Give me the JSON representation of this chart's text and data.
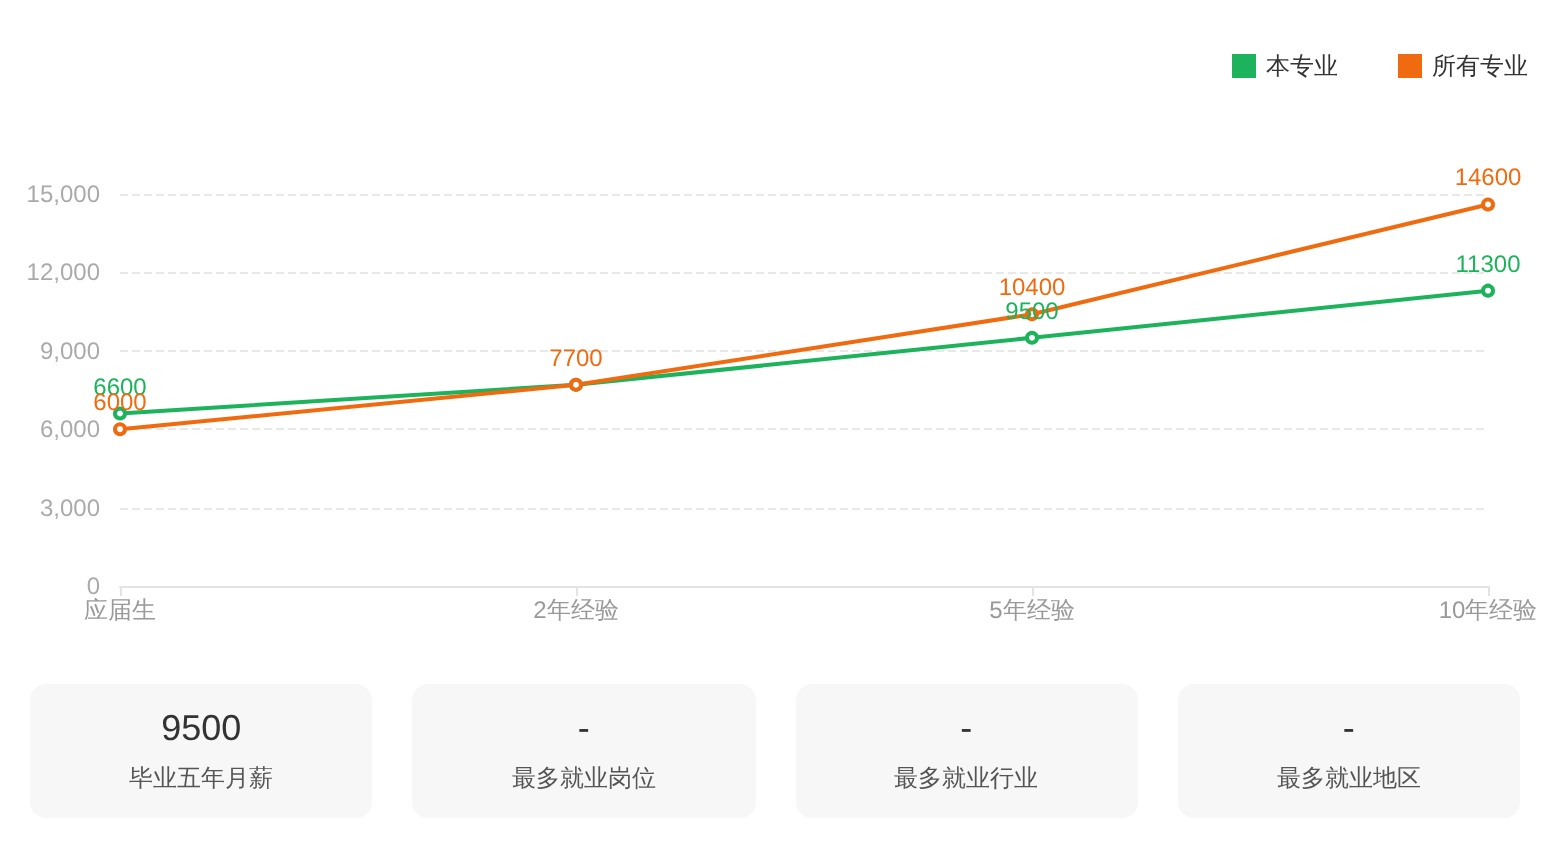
{
  "chart_data": [
    {
      "type": "line",
      "categories": [
        "应届生",
        "2年经验",
        "5年经验",
        "10年经验"
      ],
      "series": [
        {
          "name": "本专业",
          "color": "#1db35c",
          "values": [
            6600,
            7700,
            9500,
            11300
          ],
          "value_labels": [
            "6600",
            null,
            "9500",
            "11300"
          ]
        },
        {
          "name": "所有专业",
          "color": "#f06b0f",
          "values": [
            6000,
            7700,
            10400,
            14600
          ],
          "value_labels": [
            "6000",
            "7700",
            "10400",
            "14600"
          ]
        }
      ],
      "ylim": [
        0,
        15000
      ],
      "yticks": [
        0,
        {
          "value": 3000,
          "label": "3,000"
        },
        {
          "value": 6000,
          "label": "6,000"
        },
        {
          "value": 9000,
          "label": "9,000"
        },
        {
          "value": 12000,
          "label": "12,000"
        },
        {
          "value": 15000,
          "label": "15,000"
        }
      ],
      "grid": "y",
      "legend": "top right",
      "marker": "circle",
      "line_style": "solid"
    },
    {
      "type": "other",
      "annotations": [
        "9500",
        "毕业五年月薪",
        "-",
        "最多就业岗位",
        "-",
        "最多就业行业",
        "-",
        "最多就业地区"
      ]
    }
  ]
}
